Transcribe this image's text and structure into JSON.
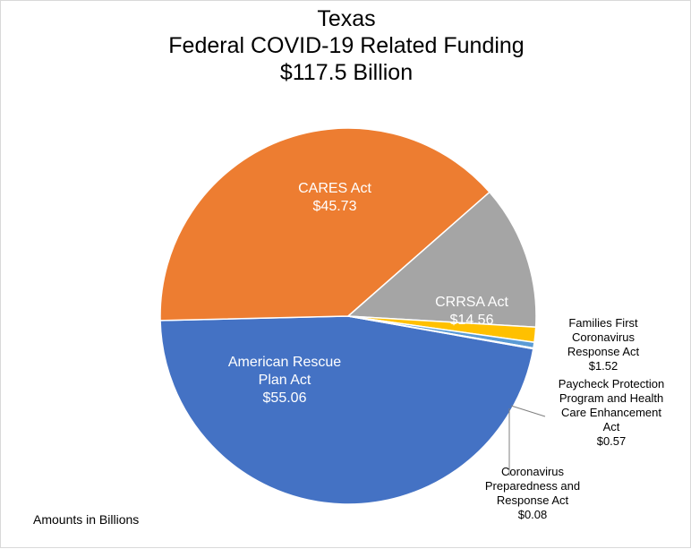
{
  "chart_data": {
    "type": "pie",
    "title": [
      "Texas",
      "Federal COVID-19 Related Funding",
      "$117.5 Billion"
    ],
    "note": "Amounts in Billions",
    "colors": {
      "American Rescue Plan Act": "#4472c4",
      "CARES Act": "#ed7d31",
      "CRRSA Act": "#a5a5a5",
      "Families First Coronavirus Response Act": "#ffc000",
      "Paycheck Protection Program and Health Care Enhancement Act": "#5b9bd5",
      "Coronavirus Preparedness and Response Act": "#70ad47"
    },
    "slices": [
      {
        "name": "American Rescue Plan Act",
        "value": 55.06,
        "label_lines": [
          "American Rescue",
          "Plan Act",
          "$55.06"
        ]
      },
      {
        "name": "CARES Act",
        "value": 45.73,
        "label_lines": [
          "CARES Act",
          "$45.73"
        ]
      },
      {
        "name": "CRRSA Act",
        "value": 14.56,
        "label_lines": [
          "CRRSA Act",
          "$14.56"
        ]
      },
      {
        "name": "Families First Coronavirus Response Act",
        "value": 1.52,
        "label_lines": [
          "Families First",
          "Coronavirus",
          "Response Act",
          "$1.52"
        ]
      },
      {
        "name": "Paycheck Protection Program and Health Care Enhancement Act",
        "value": 0.57,
        "label_lines": [
          "Paycheck Protection",
          "Program and Health",
          "Care Enhancement",
          "Act",
          "$0.57"
        ]
      },
      {
        "name": "Coronavirus Preparedness and Response Act",
        "value": 0.08,
        "label_lines": [
          "Coronavirus",
          "Preparedness and",
          "Response Act",
          "$0.08"
        ]
      }
    ]
  }
}
